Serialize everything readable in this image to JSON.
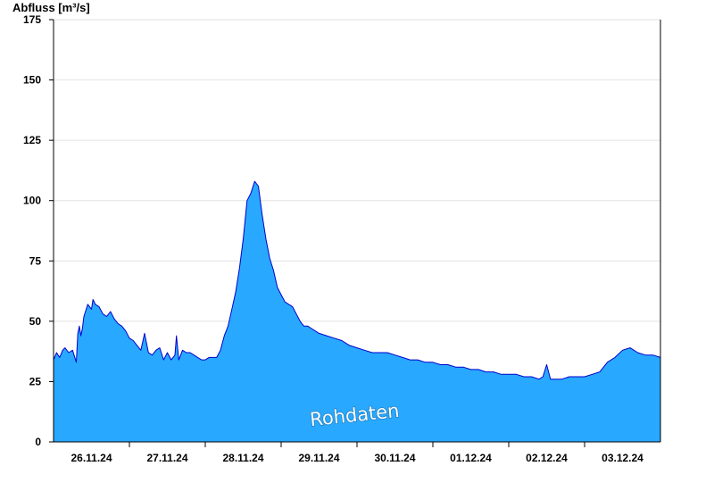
{
  "chart_data": {
    "type": "area",
    "ylabel": "Abfluss [m³/s]",
    "ylim": [
      0,
      175
    ],
    "yticks": [
      0,
      25,
      50,
      75,
      100,
      125,
      150,
      175
    ],
    "xlim": [
      0,
      8
    ],
    "x_unit": "days from 25.11.24 12:00",
    "day_boundaries": [
      1,
      2,
      3,
      4,
      5,
      6,
      7
    ],
    "xticks": [
      {
        "label": "26.11.24",
        "x": 0.5
      },
      {
        "label": "27.11.24",
        "x": 1.5
      },
      {
        "label": "28.11.24",
        "x": 2.5
      },
      {
        "label": "29.11.24",
        "x": 3.5
      },
      {
        "label": "30.11.24",
        "x": 4.5
      },
      {
        "label": "01.12.24",
        "x": 5.5
      },
      {
        "label": "02.12.24",
        "x": 6.5
      },
      {
        "label": "03.12.24",
        "x": 7.5
      }
    ],
    "grid": true,
    "fill_color": "#29a8ff",
    "line_color": "#0000cc",
    "annotation": "Rohdaten",
    "series": [
      {
        "x": [
          0,
          0.04,
          0.08,
          0.12,
          0.15,
          0.2,
          0.25,
          0.3,
          0.32,
          0.34,
          0.36,
          0.38,
          0.4,
          0.45,
          0.5,
          0.52,
          0.55,
          0.6,
          0.65,
          0.7,
          0.75,
          0.8,
          0.85,
          0.9,
          0.95,
          1,
          1.05,
          1.1,
          1.15,
          1.2,
          1.25,
          1.3,
          1.35,
          1.4,
          1.45,
          1.5,
          1.55,
          1.6,
          1.62,
          1.65,
          1.7,
          1.75,
          1.8,
          1.85,
          1.9,
          1.95,
          2.0,
          2.05,
          2.1,
          2.15,
          2.2,
          2.25,
          2.3,
          2.35,
          2.4,
          2.45,
          2.5,
          2.55,
          2.6,
          2.65,
          2.7,
          2.75,
          2.8,
          2.85,
          2.9,
          2.95,
          3.0,
          3.05,
          3.1,
          3.15,
          3.2,
          3.25,
          3.3,
          3.35,
          3.4,
          3.5,
          3.6,
          3.7,
          3.8,
          3.9,
          4.0,
          4.1,
          4.2,
          4.3,
          4.4,
          4.5,
          4.6,
          4.7,
          4.8,
          4.9,
          5.0,
          5.1,
          5.2,
          5.3,
          5.4,
          5.5,
          5.6,
          5.7,
          5.8,
          5.9,
          6.0,
          6.1,
          6.2,
          6.3,
          6.4,
          6.45,
          6.5,
          6.55,
          6.6,
          6.65,
          6.7,
          6.8,
          6.9,
          7.0,
          7.1,
          7.2,
          7.3,
          7.4,
          7.5,
          7.6,
          7.7,
          7.8,
          7.9,
          8.0
        ],
        "y": [
          34,
          37,
          35,
          38,
          39,
          37,
          38,
          33,
          45,
          48,
          44,
          47,
          52,
          57,
          55,
          59,
          57,
          56,
          53,
          52,
          54,
          51,
          49,
          48,
          46,
          43,
          42,
          40,
          38,
          45,
          37,
          36,
          38,
          39,
          34,
          37,
          34,
          36,
          44,
          34,
          38,
          37,
          37,
          36,
          35,
          34,
          34,
          35,
          35,
          35,
          38,
          44,
          48,
          55,
          62,
          72,
          84,
          100,
          103,
          108,
          106,
          94,
          84,
          76,
          71,
          64,
          61,
          58,
          57,
          56,
          53,
          50,
          48,
          48,
          47,
          45,
          44,
          43,
          42,
          40,
          39,
          38,
          37,
          37,
          37,
          36,
          35,
          34,
          34,
          33,
          33,
          32,
          32,
          31,
          31,
          30,
          30,
          29,
          29,
          28,
          28,
          28,
          27,
          27,
          26,
          27,
          32,
          26,
          26,
          26,
          26,
          27,
          27,
          27,
          28,
          29,
          33,
          35,
          38,
          39,
          37,
          36,
          36,
          35
        ]
      }
    ]
  }
}
